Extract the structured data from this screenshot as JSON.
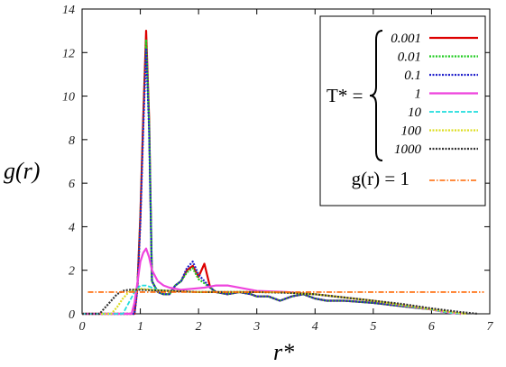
{
  "chart_data": {
    "type": "line",
    "xlabel": "r*",
    "ylabel": "g(r)",
    "xlim": [
      0,
      7
    ],
    "ylim": [
      0,
      14
    ],
    "xticks": [
      "0",
      "1",
      "2",
      "3",
      "4",
      "5",
      "6",
      "7"
    ],
    "yticks": [
      "0",
      "2",
      "4",
      "6",
      "8",
      "10",
      "12",
      "14"
    ],
    "grid": false,
    "legend_position": "top-right",
    "legend_group_label": "T* =",
    "series": [
      {
        "name": "0.001",
        "color": "#dd0000",
        "style": "solid",
        "x": [
          0,
          0.9,
          0.95,
          1.0,
          1.05,
          1.1,
          1.15,
          1.2,
          1.3,
          1.4,
          1.5,
          1.6,
          1.7,
          1.8,
          1.9,
          2.0,
          2.1,
          2.2,
          2.3,
          2.5,
          2.7,
          2.9,
          3.0,
          3.2,
          3.4,
          3.6,
          3.8,
          4.0,
          4.2,
          4.5,
          5.0,
          5.5,
          6.0,
          6.3,
          6.5
        ],
        "y": [
          0,
          0,
          1.2,
          4.5,
          9.0,
          13.0,
          9.0,
          1.5,
          1.0,
          0.9,
          0.9,
          1.3,
          1.5,
          2.0,
          2.2,
          1.7,
          2.3,
          1.2,
          1.0,
          0.9,
          1.0,
          0.9,
          0.8,
          0.8,
          0.6,
          0.8,
          0.9,
          0.7,
          0.6,
          0.6,
          0.5,
          0.35,
          0.2,
          0.05,
          0
        ]
      },
      {
        "name": "0.01",
        "color": "#22cc22",
        "style": "dotted",
        "x": [
          0,
          0.9,
          0.95,
          1.0,
          1.05,
          1.1,
          1.15,
          1.2,
          1.3,
          1.4,
          1.5,
          1.6,
          1.7,
          1.8,
          1.9,
          2.0,
          2.1,
          2.2,
          2.3,
          2.5,
          2.7,
          2.9,
          3.0,
          3.2,
          3.4,
          3.6,
          3.8,
          4.0,
          4.2,
          4.5,
          5.0,
          5.5,
          6.0,
          6.3,
          6.5
        ],
        "y": [
          0,
          0,
          1.2,
          4.4,
          8.8,
          12.6,
          8.8,
          1.5,
          1.0,
          0.9,
          0.9,
          1.3,
          1.5,
          1.9,
          2.1,
          1.6,
          1.4,
          1.2,
          1.0,
          0.9,
          1.0,
          0.9,
          0.8,
          0.8,
          0.6,
          0.8,
          0.9,
          0.7,
          0.6,
          0.6,
          0.5,
          0.35,
          0.2,
          0.05,
          0
        ]
      },
      {
        "name": "0.1",
        "color": "#2222cc",
        "style": "dotted",
        "x": [
          0,
          0.9,
          0.95,
          1.0,
          1.05,
          1.1,
          1.15,
          1.2,
          1.3,
          1.4,
          1.5,
          1.6,
          1.7,
          1.8,
          1.9,
          2.0,
          2.1,
          2.2,
          2.3,
          2.5,
          2.7,
          2.9,
          3.0,
          3.2,
          3.4,
          3.6,
          3.8,
          4.0,
          4.2,
          4.5,
          5.0,
          5.5,
          6.0,
          6.3,
          6.5
        ],
        "y": [
          0,
          0,
          1.1,
          4.2,
          8.5,
          12.2,
          8.5,
          1.5,
          1.0,
          0.9,
          0.9,
          1.3,
          1.5,
          2.1,
          2.4,
          1.8,
          1.5,
          1.2,
          1.0,
          0.9,
          1.0,
          0.9,
          0.8,
          0.8,
          0.6,
          0.8,
          0.9,
          0.7,
          0.6,
          0.6,
          0.5,
          0.35,
          0.2,
          0.05,
          0
        ]
      },
      {
        "name": "1",
        "color": "#ee44dd",
        "style": "solid",
        "x": [
          0,
          0.85,
          0.9,
          0.95,
          1.0,
          1.05,
          1.1,
          1.15,
          1.2,
          1.3,
          1.4,
          1.5,
          1.7,
          1.9,
          2.1,
          2.3,
          2.5,
          2.8,
          3.0,
          3.5,
          4.0,
          4.5,
          5.0,
          5.5,
          6.0,
          6.3,
          6.5
        ],
        "y": [
          0,
          0,
          0.5,
          1.4,
          2.4,
          2.8,
          3.0,
          2.6,
          2.0,
          1.5,
          1.3,
          1.2,
          1.1,
          1.15,
          1.2,
          1.3,
          1.3,
          1.15,
          1.05,
          1.0,
          0.9,
          0.75,
          0.6,
          0.4,
          0.2,
          0.05,
          0
        ]
      },
      {
        "name": "10",
        "color": "#22dddd",
        "style": "dashed",
        "x": [
          0,
          0.7,
          0.8,
          0.9,
          1.0,
          1.1,
          1.2,
          1.3,
          1.5,
          2.0,
          2.5,
          3.0,
          3.5,
          4.0,
          4.5,
          5.0,
          5.5,
          6.0,
          6.3,
          6.5
        ],
        "y": [
          0,
          0,
          0.5,
          1.0,
          1.3,
          1.3,
          1.2,
          1.1,
          1.05,
          1.0,
          1.0,
          1.0,
          0.98,
          0.9,
          0.75,
          0.6,
          0.4,
          0.2,
          0.05,
          0
        ]
      },
      {
        "name": "100",
        "color": "#dddd22",
        "style": "dotted",
        "x": [
          0,
          0.5,
          0.6,
          0.7,
          0.8,
          0.9,
          1.0,
          1.2,
          1.5,
          2.0,
          2.5,
          3.0,
          3.5,
          4.0,
          4.5,
          5.0,
          5.5,
          6.0,
          6.4,
          6.6
        ],
        "y": [
          0,
          0,
          0.3,
          0.7,
          1.0,
          1.1,
          1.15,
          1.1,
          1.05,
          1.0,
          1.0,
          1.0,
          0.98,
          0.9,
          0.75,
          0.6,
          0.4,
          0.2,
          0.05,
          0
        ]
      },
      {
        "name": "1000",
        "color": "#333333",
        "style": "dotted",
        "x": [
          0,
          0.3,
          0.4,
          0.5,
          0.6,
          0.7,
          0.8,
          1.0,
          1.5,
          2.0,
          2.5,
          3.0,
          3.5,
          4.0,
          4.5,
          5.0,
          5.5,
          6.0,
          6.5,
          6.8
        ],
        "y": [
          0,
          0,
          0.3,
          0.6,
          0.9,
          1.05,
          1.1,
          1.1,
          1.05,
          1.0,
          1.0,
          1.0,
          0.97,
          0.9,
          0.75,
          0.6,
          0.45,
          0.25,
          0.08,
          0
        ]
      },
      {
        "name": "g(r) = 1",
        "color": "#ff6600",
        "style": "dashdot",
        "x": [
          0.1,
          6.9
        ],
        "y": [
          1,
          1
        ]
      }
    ]
  }
}
